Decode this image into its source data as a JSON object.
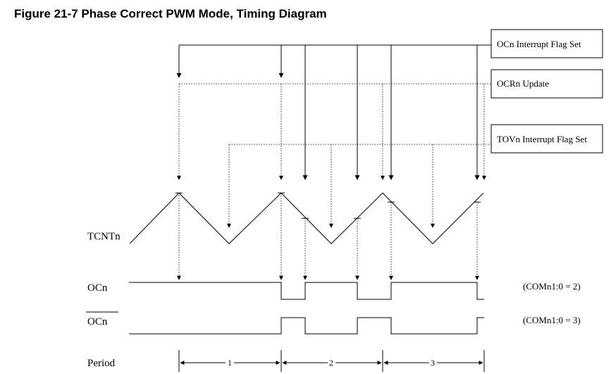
{
  "title": "Figure 21-7  Phase Correct PWM Mode, Timing Diagram",
  "callouts": {
    "ocn_flag": "OCn Interrupt Flag Set",
    "ocrn_update": "OCRn Update",
    "tovn_flag": "TOVn Interrupt Flag Set"
  },
  "signals": {
    "tcntn": "TCNTn",
    "ocn": "OCn",
    "ocn_inv": "OCn",
    "period": "Period"
  },
  "modes": {
    "ocn": "(COMn1:0 = 2)",
    "ocn_inv": "(COMn1:0 = 3)"
  },
  "periods": [
    "1",
    "2",
    "3"
  ]
}
